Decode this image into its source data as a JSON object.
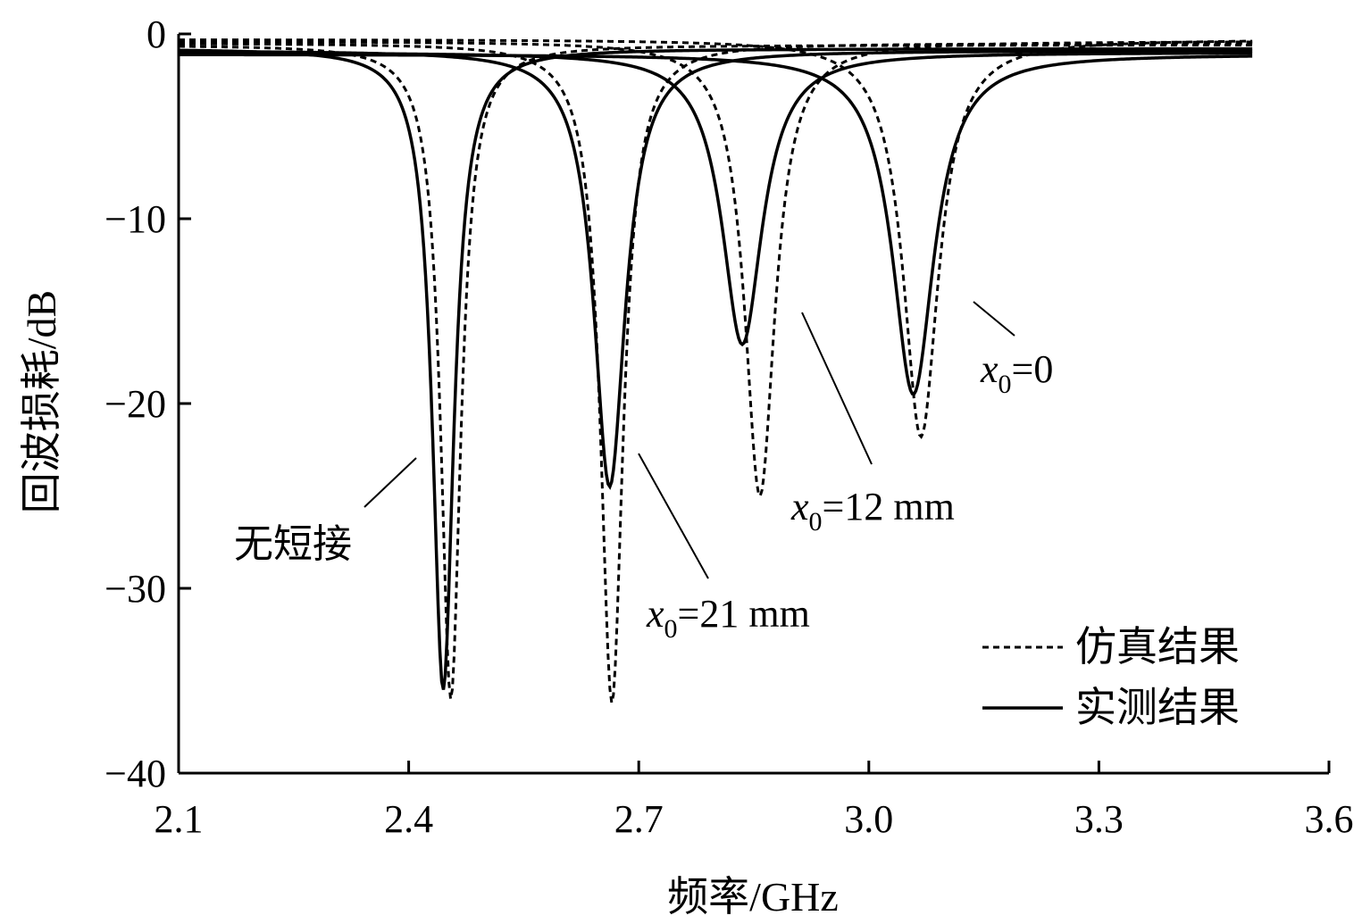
{
  "chart_data": {
    "type": "line",
    "xlabel": "频率/GHz",
    "ylabel": "回波损耗/dB",
    "xlim": [
      2.1,
      3.6
    ],
    "ylim": [
      -40,
      0
    ],
    "xticks": [
      "2.1",
      "2.4",
      "2.7",
      "3.0",
      "3.3",
      "3.6"
    ],
    "yticks": [
      "0",
      "−10",
      "−20",
      "−30",
      "−40"
    ],
    "grid": false,
    "legend_position": "bottom-right",
    "legend": [
      {
        "label": "仿真结果",
        "style": "dashed"
      },
      {
        "label": "实测结果",
        "style": "solid"
      }
    ],
    "annotations": {
      "no_short": "无短接",
      "x21": {
        "var": "x",
        "sub": "0",
        "rest": "=21 mm"
      },
      "x12": {
        "var": "x",
        "sub": "0",
        "rest": "=12 mm"
      },
      "x0": {
        "var": "x",
        "sub": "0",
        "rest": "=0"
      }
    },
    "series": [
      {
        "group": "无短接",
        "kind": "simulated",
        "style": "dashed",
        "f0": 2.455,
        "min_db": -36.0,
        "bw": 0.016,
        "base": -0.6
      },
      {
        "group": "无短接",
        "kind": "measured",
        "style": "solid",
        "f0": 2.445,
        "min_db": -35.5,
        "bw": 0.017,
        "base": -0.8
      },
      {
        "group": "x0=21 mm",
        "kind": "simulated",
        "style": "dashed",
        "f0": 2.665,
        "min_db": -36.2,
        "bw": 0.018,
        "base": -0.5
      },
      {
        "group": "x0=21 mm",
        "kind": "measured",
        "style": "solid",
        "f0": 2.662,
        "min_db": -24.5,
        "bw": 0.025,
        "base": -0.9
      },
      {
        "group": "x0=12 mm",
        "kind": "simulated",
        "style": "dashed",
        "f0": 2.858,
        "min_db": -25.0,
        "bw": 0.024,
        "base": -0.4
      },
      {
        "group": "x0=12 mm",
        "kind": "measured",
        "style": "solid",
        "f0": 2.835,
        "min_db": -16.8,
        "bw": 0.032,
        "base": -1.0
      },
      {
        "group": "x0=0",
        "kind": "simulated",
        "style": "dashed",
        "f0": 3.068,
        "min_db": -21.8,
        "bw": 0.028,
        "base": -0.3
      },
      {
        "group": "x0=0",
        "kind": "measured",
        "style": "solid",
        "f0": 3.058,
        "min_db": -19.5,
        "bw": 0.033,
        "base": -1.1
      }
    ]
  }
}
